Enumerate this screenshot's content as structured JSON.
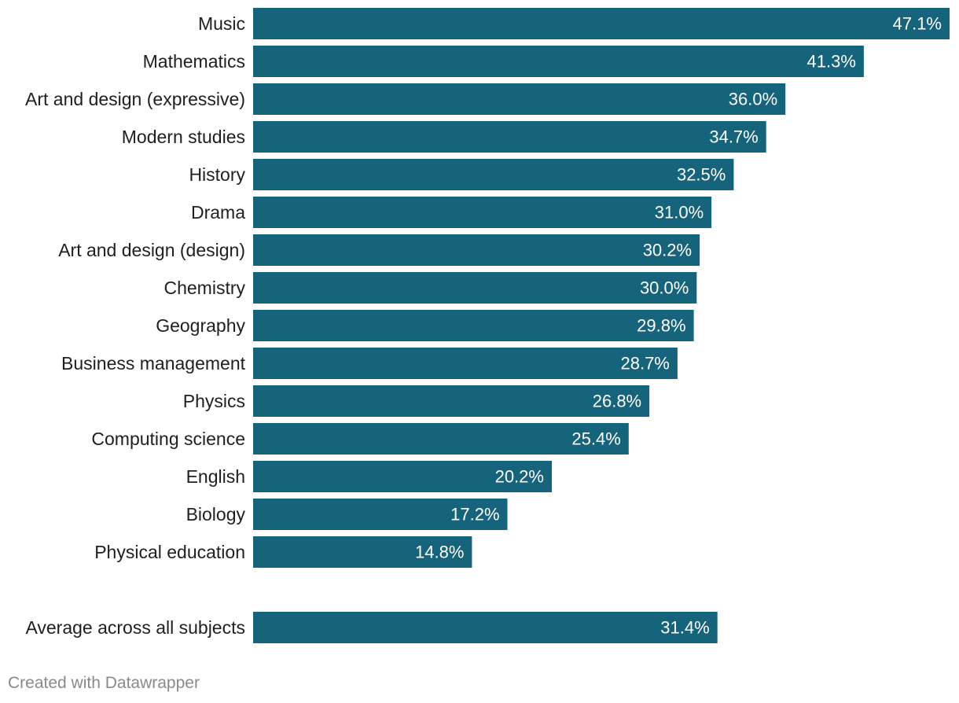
{
  "chart_data": {
    "type": "bar",
    "orientation": "horizontal",
    "categories": [
      "Music",
      "Mathematics",
      "Art and design (expressive)",
      "Modern studies",
      "History",
      "Drama",
      "Art and design (design)",
      "Chemistry",
      "Geography",
      "Business management",
      "Physics",
      "Computing science",
      "English",
      "Biology",
      "Physical education",
      "Average across all subjects"
    ],
    "values": [
      47.1,
      41.3,
      36.0,
      34.7,
      32.5,
      31.0,
      30.2,
      30.0,
      29.8,
      28.7,
      26.8,
      25.4,
      20.2,
      17.2,
      14.8,
      31.4
    ],
    "value_labels": [
      "47.1%",
      "41.3%",
      "36.0%",
      "34.7%",
      "32.5%",
      "31.0%",
      "30.2%",
      "30.0%",
      "29.8%",
      "28.7%",
      "26.8%",
      "25.4%",
      "20.2%",
      "17.2%",
      "14.8%",
      "31.4%"
    ],
    "xlim": [
      0,
      47.1
    ],
    "grid": false,
    "bar_color": "#16637c",
    "label_color": "#ffffff"
  },
  "footer": {
    "credit": "Created with Datawrapper"
  }
}
